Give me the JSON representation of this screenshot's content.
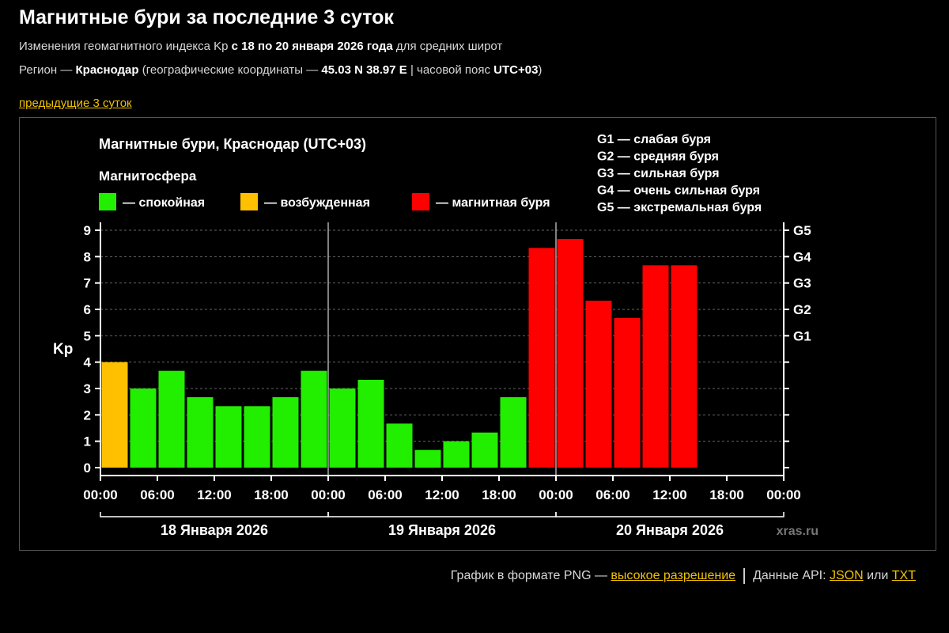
{
  "page": {
    "title": "Магнитные бури за последние 3 суток",
    "subtitle": {
      "pre": "Изменения геомагнитного индекса Kp ",
      "bold": "с 18 по 20 января 2026 года",
      "post": " для средних широт"
    },
    "region": {
      "pre": "Регион — ",
      "name": "Краснодар",
      "mid": " (географические координаты — ",
      "coords": "45.03 N 38.97 E",
      "mid2": " | часовой пояс ",
      "tz": "UTC+03",
      "post": ")"
    },
    "prev_link": "предыдущие 3 суток"
  },
  "footer": {
    "png_text": "График в формате PNG — ",
    "hires_link": "высокое разрешение",
    "api_text": "Данные API: ",
    "json_link": "JSON",
    "or_text": " или ",
    "txt_link": "TXT"
  },
  "chart_data": {
    "type": "bar",
    "title": "Магнитные бури, Краснодар (UTC+03)",
    "legend_title": "Магнитосфера",
    "legend": [
      {
        "key": "quiet",
        "label": "— спокойная",
        "color": "#22ee00"
      },
      {
        "key": "excited",
        "label": "— возбужденная",
        "color": "#ffc000"
      },
      {
        "key": "storm",
        "label": "— магнитная буря",
        "color": "#ff0000"
      }
    ],
    "storm_levels": [
      {
        "level": "G1",
        "desc": "G1 — слабая буря",
        "kp": 5
      },
      {
        "level": "G2",
        "desc": "G2 — средняя буря",
        "kp": 6
      },
      {
        "level": "G3",
        "desc": "G3 — сильная буря",
        "kp": 7
      },
      {
        "level": "G4",
        "desc": "G4 — очень сильная буря",
        "kp": 8
      },
      {
        "level": "G5",
        "desc": "G5 — экстремальная буря",
        "kp": 9
      }
    ],
    "ylabel": "Kp",
    "ylim": [
      0,
      9
    ],
    "yticks": [
      0,
      1,
      2,
      3,
      4,
      5,
      6,
      7,
      8,
      9
    ],
    "xticks": [
      "00:00",
      "06:00",
      "12:00",
      "18:00",
      "00:00",
      "06:00",
      "12:00",
      "18:00",
      "00:00",
      "06:00",
      "12:00",
      "18:00",
      "00:00"
    ],
    "days": [
      "18 Января 2026",
      "19 Января 2026",
      "20 Января 2026"
    ],
    "interval_hours": 3,
    "total_slots": 24,
    "values": [
      4.0,
      3.0,
      3.67,
      2.67,
      2.33,
      2.33,
      2.67,
      3.67,
      3.0,
      3.33,
      1.67,
      0.67,
      1.0,
      1.33,
      2.67,
      8.33,
      8.67,
      6.33,
      5.67,
      7.67,
      7.67
    ],
    "category": [
      "excited",
      "quiet",
      "quiet",
      "quiet",
      "quiet",
      "quiet",
      "quiet",
      "quiet",
      "quiet",
      "quiet",
      "quiet",
      "quiet",
      "quiet",
      "quiet",
      "quiet",
      "storm",
      "storm",
      "storm",
      "storm",
      "storm",
      "storm"
    ],
    "grid": true,
    "watermark": "xras.ru"
  }
}
